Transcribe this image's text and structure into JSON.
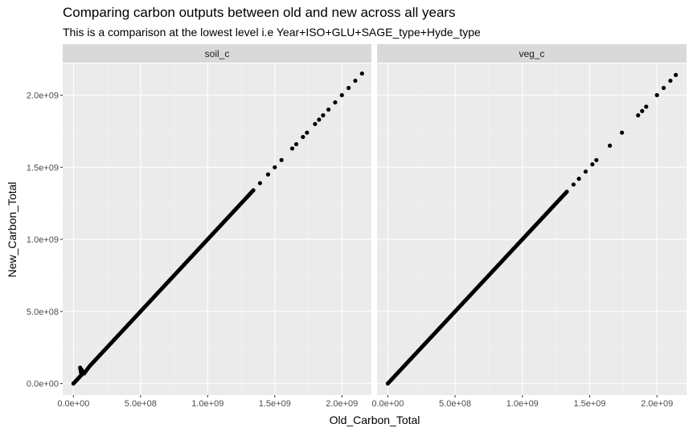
{
  "chart_data": {
    "type": "scatter",
    "title": "Comparing carbon outputs between old and new across all years",
    "subtitle": "This is a comparison at the lowest level i.e Year+ISO+GLU+SAGE_type+Hyde_type",
    "xlabel": "Old_Carbon_Total",
    "ylabel": "New_Carbon_Total",
    "xlim": [
      -80000000.0,
      2220000000.0
    ],
    "ylim": [
      -80000000.0,
      2220000000.0
    ],
    "x_ticks": [
      0,
      500000000,
      1000000000,
      1500000000,
      2000000000
    ],
    "x_tick_labels": [
      "0.0e+00",
      "5.0e+08",
      "1.0e+09",
      "1.5e+09",
      "2.0e+09"
    ],
    "y_ticks": [
      0,
      500000000,
      1000000000,
      1500000000,
      2000000000
    ],
    "y_tick_labels": [
      "0.0e+00",
      "5.0e+08",
      "1.0e+09",
      "1.5e+09",
      "2.0e+09"
    ],
    "grid": true,
    "panels": [
      {
        "name": "soil_c",
        "points": [
          [
            0,
            0
          ],
          [
            10000000.0,
            10000000.0
          ],
          [
            20000000.0,
            20000000.0
          ],
          [
            30000000.0,
            30000000.0
          ],
          [
            40000000.0,
            40000000.0
          ],
          [
            50000000.0,
            50000000.0
          ],
          [
            60000000.0,
            60000000.0
          ],
          [
            50000000.0,
            110000000.0
          ],
          [
            80000000.0,
            70000000.0
          ],
          [
            100000000.0,
            95000000.0
          ],
          [
            120000000.0,
            120000000.0
          ],
          [
            150000000.0,
            150000000.0
          ],
          [
            180000000.0,
            180000000.0
          ],
          [
            210000000.0,
            210000000.0
          ],
          [
            250000000.0,
            250000000.0
          ],
          [
            290000000.0,
            290000000.0
          ],
          [
            330000000.0,
            330000000.0
          ],
          [
            370000000.0,
            370000000.0
          ],
          [
            410000000.0,
            410000000.0
          ],
          [
            450000000.0,
            450000000.0
          ],
          [
            500000000.0,
            500000000.0
          ],
          [
            550000000.0,
            550000000.0
          ],
          [
            600000000.0,
            600000000.0
          ],
          [
            640000000.0,
            640000000.0
          ],
          [
            690000000.0,
            690000000.0
          ],
          [
            730000000.0,
            730000000.0
          ],
          [
            780000000.0,
            780000000.0
          ],
          [
            830000000.0,
            830000000.0
          ],
          [
            880000000.0,
            880000000.0
          ],
          [
            930000000.0,
            930000000.0
          ],
          [
            980000000.0,
            980000000.0
          ],
          [
            1030000000.0,
            1030000000.0
          ],
          [
            1080000000.0,
            1080000000.0
          ],
          [
            1130000000.0,
            1130000000.0
          ],
          [
            1180000000.0,
            1180000000.0
          ],
          [
            1240000000.0,
            1240000000.0
          ],
          [
            1290000000.0,
            1290000000.0
          ],
          [
            1340000000.0,
            1340000000.0
          ],
          [
            1390000000.0,
            1390000000.0
          ],
          [
            1450000000.0,
            1450000000.0
          ],
          [
            1500000000.0,
            1500000000.0
          ],
          [
            1550000000.0,
            1550000000.0
          ],
          [
            1630000000.0,
            1630000000.0
          ],
          [
            1660000000.0,
            1660000000.0
          ],
          [
            1710000000.0,
            1710000000.0
          ],
          [
            1740000000.0,
            1740000000.0
          ],
          [
            1800000000.0,
            1800000000.0
          ],
          [
            1830000000.0,
            1830000000.0
          ],
          [
            1860000000.0,
            1860000000.0
          ],
          [
            1900000000.0,
            1900000000.0
          ],
          [
            1950000000.0,
            1950000000.0
          ],
          [
            2000000000.0,
            2000000000.0
          ],
          [
            2050000000.0,
            2050000000.0
          ],
          [
            2100000000.0,
            2100000000.0
          ],
          [
            2150000000.0,
            2150000000.0
          ]
        ]
      },
      {
        "name": "veg_c",
        "points": [
          [
            0,
            0
          ],
          [
            10000000.0,
            10000000.0
          ],
          [
            20000000.0,
            20000000.0
          ],
          [
            40000000.0,
            40000000.0
          ],
          [
            60000000.0,
            60000000.0
          ],
          [
            90000000.0,
            90000000.0
          ],
          [
            120000000.0,
            120000000.0
          ],
          [
            160000000.0,
            160000000.0
          ],
          [
            200000000.0,
            200000000.0
          ],
          [
            240000000.0,
            240000000.0
          ],
          [
            280000000.0,
            280000000.0
          ],
          [
            320000000.0,
            320000000.0
          ],
          [
            360000000.0,
            360000000.0
          ],
          [
            400000000.0,
            400000000.0
          ],
          [
            450000000.0,
            450000000.0
          ],
          [
            500000000.0,
            500000000.0
          ],
          [
            550000000.0,
            550000000.0
          ],
          [
            600000000.0,
            600000000.0
          ],
          [
            650000000.0,
            650000000.0
          ],
          [
            700000000.0,
            700000000.0
          ],
          [
            760000000.0,
            760000000.0
          ],
          [
            820000000.0,
            820000000.0
          ],
          [
            880000000.0,
            880000000.0
          ],
          [
            940000000.0,
            940000000.0
          ],
          [
            1000000000.0,
            1000000000.0
          ],
          [
            1050000000.0,
            1050000000.0
          ],
          [
            1100000000.0,
            1100000000.0
          ],
          [
            1160000000.0,
            1160000000.0
          ],
          [
            1220000000.0,
            1220000000.0
          ],
          [
            1280000000.0,
            1280000000.0
          ],
          [
            1330000000.0,
            1330000000.0
          ],
          [
            1380000000.0,
            1380000000.0
          ],
          [
            1420000000.0,
            1420000000.0
          ],
          [
            1470000000.0,
            1470000000.0
          ],
          [
            1520000000.0,
            1520000000.0
          ],
          [
            1550000000.0,
            1550000000.0
          ],
          [
            1650000000.0,
            1650000000.0
          ],
          [
            1740000000.0,
            1740000000.0
          ],
          [
            1860000000.0,
            1860000000.0
          ],
          [
            1890000000.0,
            1890000000.0
          ],
          [
            1920000000.0,
            1920000000.0
          ],
          [
            2000000000.0,
            2000000000.0
          ],
          [
            2050000000.0,
            2050000000.0
          ],
          [
            2100000000.0,
            2100000000.0
          ],
          [
            2140000000.0,
            2140000000.0
          ]
        ]
      }
    ]
  }
}
